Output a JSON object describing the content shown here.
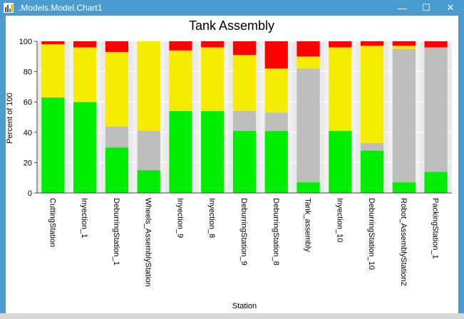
{
  "window": {
    "title": ".Models.Model.Chart1",
    "buttons": {
      "minimize": "—",
      "maximize": "☐",
      "close": "✕"
    }
  },
  "colors": {
    "titlebar": "#4a9bd0",
    "green": "#00ee00",
    "yellow": "#f5ec00",
    "gray": "#bebebe",
    "red": "#ff0000"
  },
  "chart_data": {
    "type": "bar",
    "stacked": true,
    "title": "Tank Assembly",
    "xlabel": "Station",
    "ylabel": "Percent of 100",
    "ylim": [
      0,
      100
    ],
    "yticks": [
      0,
      20,
      40,
      60,
      80,
      100
    ],
    "grid": true,
    "categories": [
      "CuttingStation",
      "Inyection_1",
      "DeburringStation_1",
      "Wheels_AssemblyStation",
      "Inyection_9",
      "Inyection_8",
      "DeburringStation_9",
      "DeburringStation_8",
      "Tank_assembly",
      "Inyection_10",
      "DeburringStation_10",
      "Robot_AssemblyStation2",
      "PackingStation_1"
    ],
    "series": [
      {
        "color": "#00ee00",
        "values": [
          63,
          60,
          30,
          15,
          54,
          54,
          41,
          41,
          7,
          41,
          28,
          7,
          14
        ]
      },
      {
        "color": "#bebebe",
        "values": [
          0,
          0,
          14,
          26,
          0,
          0,
          13,
          12,
          75,
          0,
          5,
          88,
          82
        ]
      },
      {
        "color": "#f5ec00",
        "values": [
          35,
          36,
          49,
          59,
          40,
          42,
          37,
          29,
          8,
          55,
          64,
          2,
          0
        ]
      },
      {
        "color": "#ff0000",
        "values": [
          2,
          4,
          7,
          0,
          6,
          4,
          9,
          18,
          10,
          4,
          3,
          3,
          4
        ]
      }
    ]
  }
}
